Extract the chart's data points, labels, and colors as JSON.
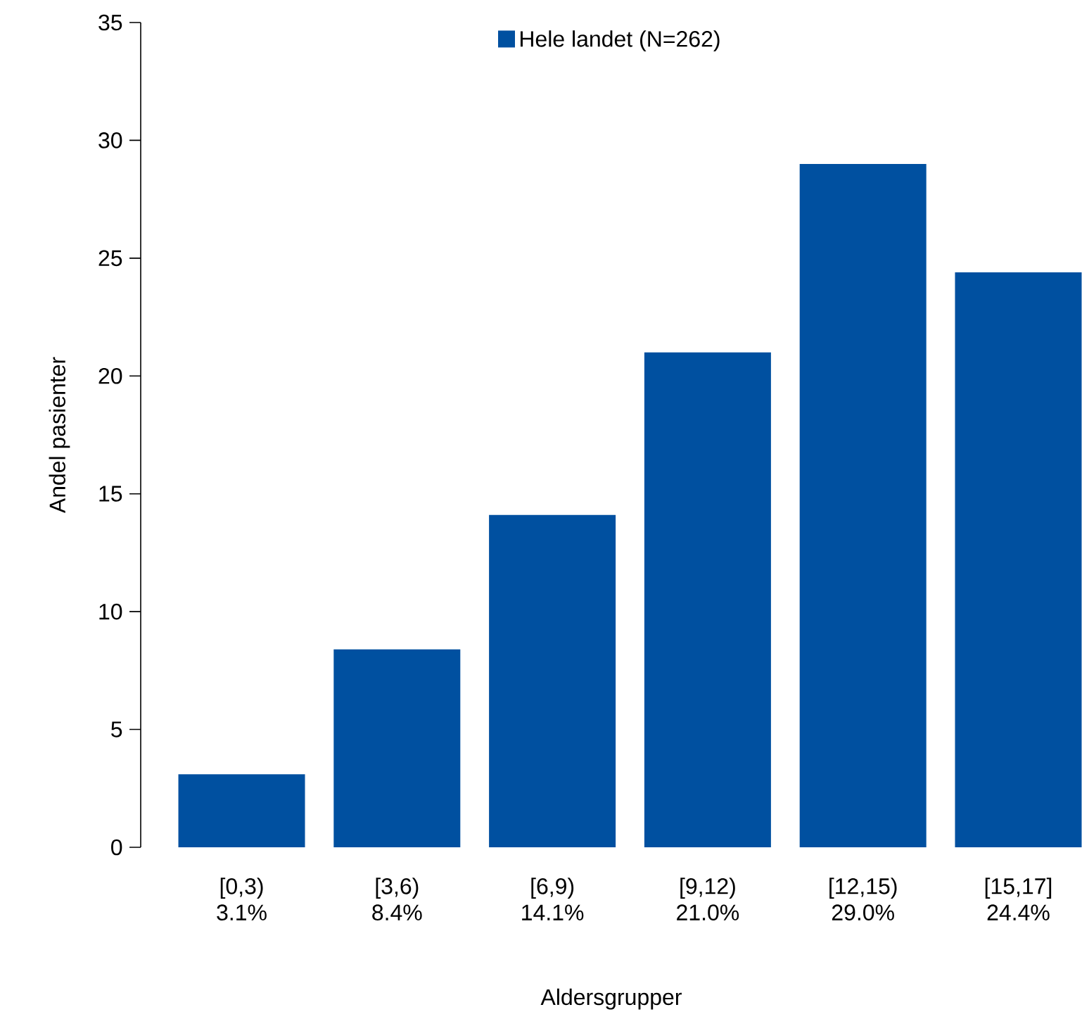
{
  "chart_data": {
    "type": "bar",
    "xlabel": "Aldersgrupper",
    "ylabel": "Andel pasienter",
    "categories": [
      "[0,3)",
      "[3,6)",
      "[6,9)",
      "[9,12)",
      "[12,15)",
      "[15,17]"
    ],
    "series": [
      {
        "name": "Hele landet (N=262)",
        "color": "#0050a0",
        "values": [
          3.1,
          8.4,
          14.1,
          21.0,
          29.0,
          24.4
        ],
        "value_labels": [
          "3.1%",
          "8.4%",
          "14.1%",
          "21.0%",
          "29.0%",
          "24.4%"
        ]
      }
    ],
    "ylim": [
      0,
      35
    ],
    "yticks": [
      0,
      5,
      10,
      15,
      20,
      25,
      30,
      35
    ],
    "grid": false,
    "legend": "top"
  }
}
